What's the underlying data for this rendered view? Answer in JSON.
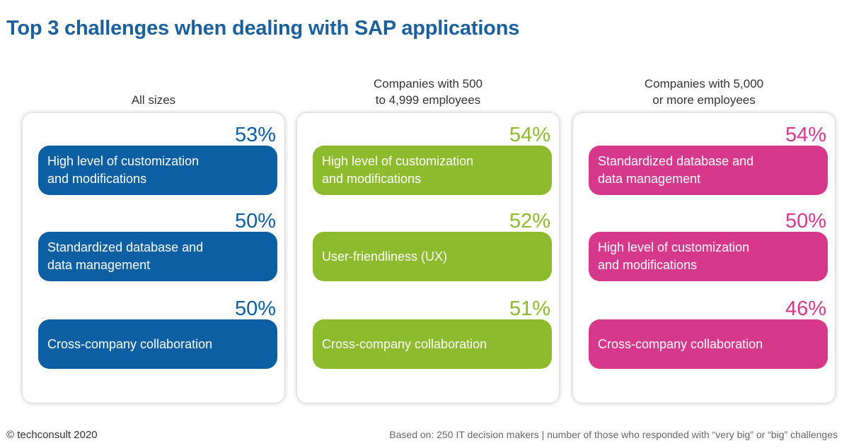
{
  "title": "Top 3 challenges when dealing with SAP applications",
  "footer": {
    "copyright": "© techconsult 2020",
    "source": "Based on: 250 IT decision makers | number of those who responded with “very big” or “big” challenges"
  },
  "colors": {
    "title": "#1a5f9e",
    "blue": "#0d5fa3",
    "green": "#8dbb2e",
    "pink": "#d6398c"
  },
  "chart_data": [
    {
      "type": "table",
      "title": "All sizes",
      "color": "#0d5fa3",
      "items": [
        {
          "label": "High level of customization\nand modifications",
          "value": 53,
          "display": "53%"
        },
        {
          "label": "Standardized database and\ndata management",
          "value": 50,
          "display": "50%"
        },
        {
          "label": "Cross-company collaboration",
          "value": 50,
          "display": "50%"
        }
      ]
    },
    {
      "type": "table",
      "title": "Companies with 500\nto 4,999 employees",
      "color": "#8dbb2e",
      "items": [
        {
          "label": "High level of customization\nand modifications",
          "value": 54,
          "display": "54%"
        },
        {
          "label": "User-friendliness (UX)",
          "value": 52,
          "display": "52%"
        },
        {
          "label": "Cross-company collaboration",
          "value": 51,
          "display": "51%"
        }
      ]
    },
    {
      "type": "table",
      "title": "Companies with 5,000\nor more employees",
      "color": "#d6398c",
      "items": [
        {
          "label": "Standardized database and\ndata management",
          "value": 54,
          "display": "54%"
        },
        {
          "label": "High level of customization\nand modifications",
          "value": 50,
          "display": "50%"
        },
        {
          "label": "Cross-company collaboration",
          "value": 46,
          "display": "46%"
        }
      ]
    }
  ]
}
